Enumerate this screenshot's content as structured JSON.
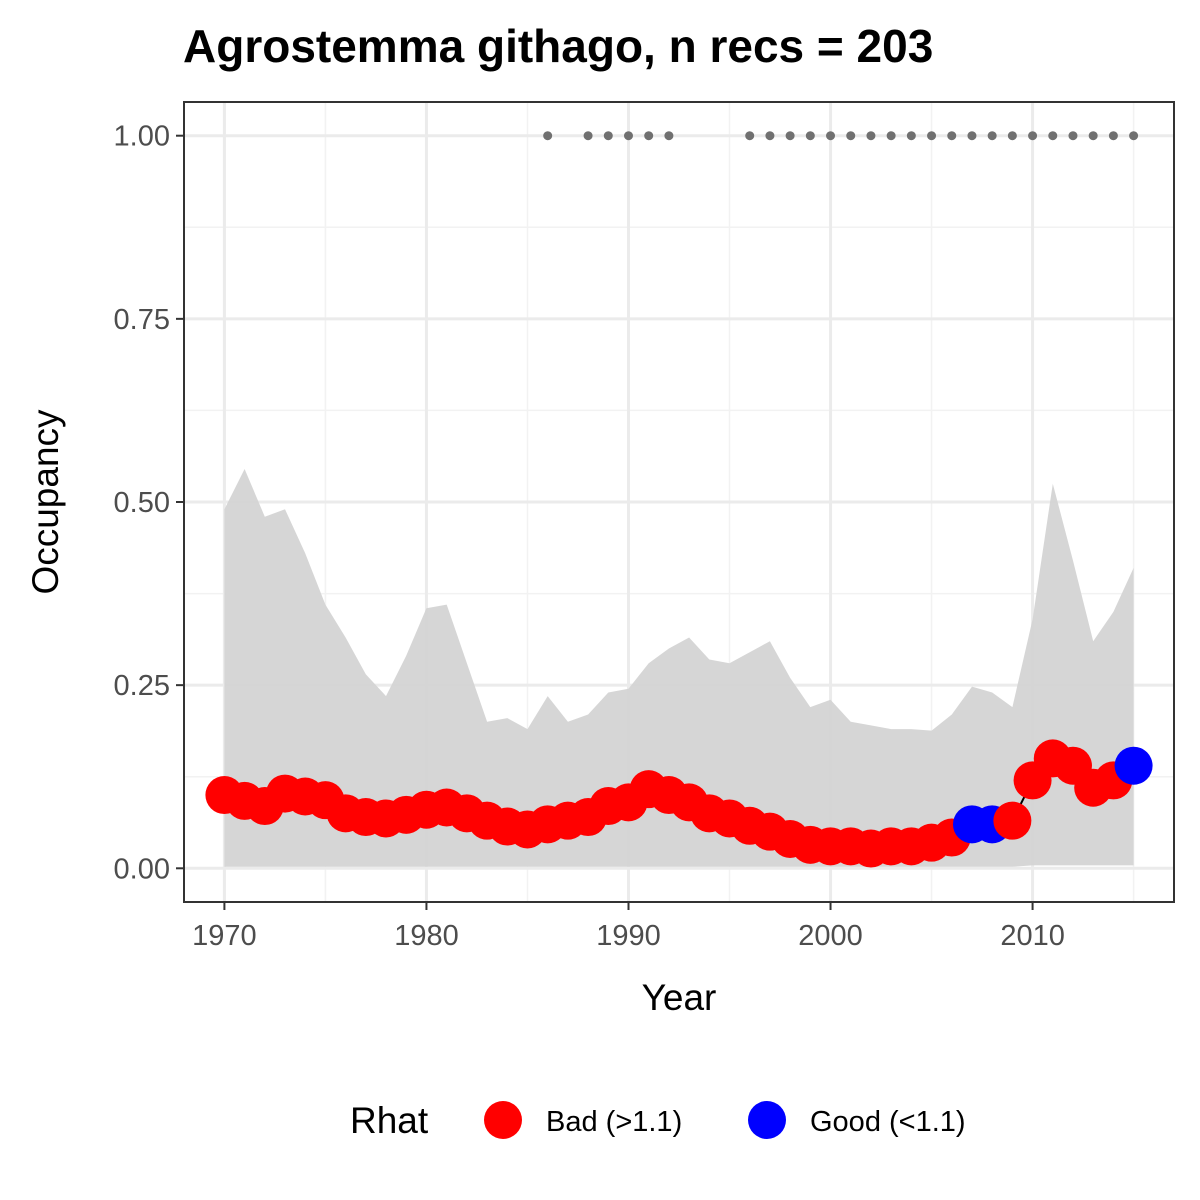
{
  "chart_data": {
    "type": "line",
    "title": "Agrostemma githago, n recs = 203",
    "xlabel": "Year",
    "ylabel": "Occupancy",
    "xlim": [
      1968,
      2017
    ],
    "ylim": [
      -0.046,
      1.046
    ],
    "x_ticks": [
      1970,
      1980,
      1990,
      2000,
      2010
    ],
    "x_tick_labels": [
      "1970",
      "1980",
      "1990",
      "2000",
      "2010"
    ],
    "y_ticks": [
      0,
      0.25,
      0.5,
      0.75,
      1.0
    ],
    "y_tick_labels": [
      "0.00",
      "0.25",
      "0.50",
      "0.75",
      "1.00"
    ],
    "grid": true,
    "legend": {
      "title": "Rhat",
      "position": "bottom",
      "entries": [
        {
          "label": "Bad (>1.1)",
          "color": "#ff0000"
        },
        {
          "label": "Good (<1.1)",
          "color": "#0000ff"
        }
      ]
    },
    "ribbon": {
      "color": "#d4d4d4",
      "x": [
        1970,
        1971,
        1972,
        1973,
        1974,
        1975,
        1976,
        1977,
        1978,
        1979,
        1980,
        1981,
        1982,
        1983,
        1984,
        1985,
        1986,
        1987,
        1988,
        1989,
        1990,
        1991,
        1992,
        1993,
        1994,
        1995,
        1996,
        1997,
        1998,
        1999,
        2000,
        2001,
        2002,
        2003,
        2004,
        2005,
        2006,
        2007,
        2008,
        2009,
        2010,
        2011,
        2012,
        2013,
        2014,
        2015
      ],
      "upper": [
        0.49,
        0.545,
        0.48,
        0.49,
        0.43,
        0.36,
        0.315,
        0.265,
        0.235,
        0.29,
        0.355,
        0.36,
        0.28,
        0.2,
        0.205,
        0.19,
        0.235,
        0.2,
        0.21,
        0.24,
        0.245,
        0.28,
        0.3,
        0.315,
        0.285,
        0.28,
        0.295,
        0.31,
        0.26,
        0.22,
        0.23,
        0.2,
        0.195,
        0.19,
        0.19,
        0.188,
        0.21,
        0.248,
        0.24,
        0.22,
        0.34,
        0.525,
        0.42,
        0.31,
        0.35,
        0.41
      ],
      "lower": [
        0.002,
        0.002,
        0.002,
        0.002,
        0.002,
        0.002,
        0.002,
        0.002,
        0.002,
        0.002,
        0.002,
        0.002,
        0.002,
        0.002,
        0.002,
        0.002,
        0.002,
        0.002,
        0.002,
        0.002,
        0.002,
        0.002,
        0.002,
        0.002,
        0.002,
        0.002,
        0.002,
        0.002,
        0.002,
        0.002,
        0.002,
        0.002,
        0.002,
        0.002,
        0.002,
        0.002,
        0.002,
        0.002,
        0.002,
        0.002,
        0.004,
        0.004,
        0.004,
        0.004,
        0.004,
        0.004
      ]
    },
    "series": [
      {
        "name": "Occupancy",
        "line_color": "#000000",
        "x": [
          1970,
          1971,
          1972,
          1973,
          1974,
          1975,
          1976,
          1977,
          1978,
          1979,
          1980,
          1981,
          1982,
          1983,
          1984,
          1985,
          1986,
          1987,
          1988,
          1989,
          1990,
          1991,
          1992,
          1993,
          1994,
          1995,
          1996,
          1997,
          1998,
          1999,
          2000,
          2001,
          2002,
          2003,
          2004,
          2005,
          2006,
          2007,
          2008,
          2009,
          2010,
          2011,
          2012,
          2013,
          2014,
          2015
        ],
        "values": [
          0.1,
          0.092,
          0.085,
          0.102,
          0.098,
          0.093,
          0.075,
          0.07,
          0.068,
          0.073,
          0.08,
          0.083,
          0.075,
          0.065,
          0.057,
          0.053,
          0.06,
          0.065,
          0.07,
          0.085,
          0.09,
          0.108,
          0.1,
          0.09,
          0.075,
          0.068,
          0.058,
          0.05,
          0.04,
          0.032,
          0.03,
          0.03,
          0.027,
          0.03,
          0.03,
          0.035,
          0.042,
          0.06,
          0.06,
          0.065,
          0.12,
          0.15,
          0.14,
          0.11,
          0.12,
          0.14
        ],
        "rhat": [
          "Bad",
          "Bad",
          "Bad",
          "Bad",
          "Bad",
          "Bad",
          "Bad",
          "Bad",
          "Bad",
          "Bad",
          "Bad",
          "Bad",
          "Bad",
          "Bad",
          "Bad",
          "Bad",
          "Bad",
          "Bad",
          "Bad",
          "Bad",
          "Bad",
          "Bad",
          "Bad",
          "Bad",
          "Bad",
          "Bad",
          "Bad",
          "Bad",
          "Bad",
          "Bad",
          "Bad",
          "Bad",
          "Bad",
          "Bad",
          "Bad",
          "Bad",
          "Bad",
          "Good",
          "Good",
          "Bad",
          "Bad",
          "Bad",
          "Bad",
          "Bad",
          "Bad",
          "Good"
        ]
      }
    ],
    "record_years": {
      "y": 1.0,
      "color": "#707070",
      "x": [
        1986,
        1988,
        1989,
        1990,
        1991,
        1992,
        1996,
        1997,
        1998,
        1999,
        2000,
        2001,
        2002,
        2003,
        2004,
        2005,
        2006,
        2007,
        2008,
        2009,
        2010,
        2011,
        2012,
        2013,
        2014,
        2015
      ]
    }
  }
}
